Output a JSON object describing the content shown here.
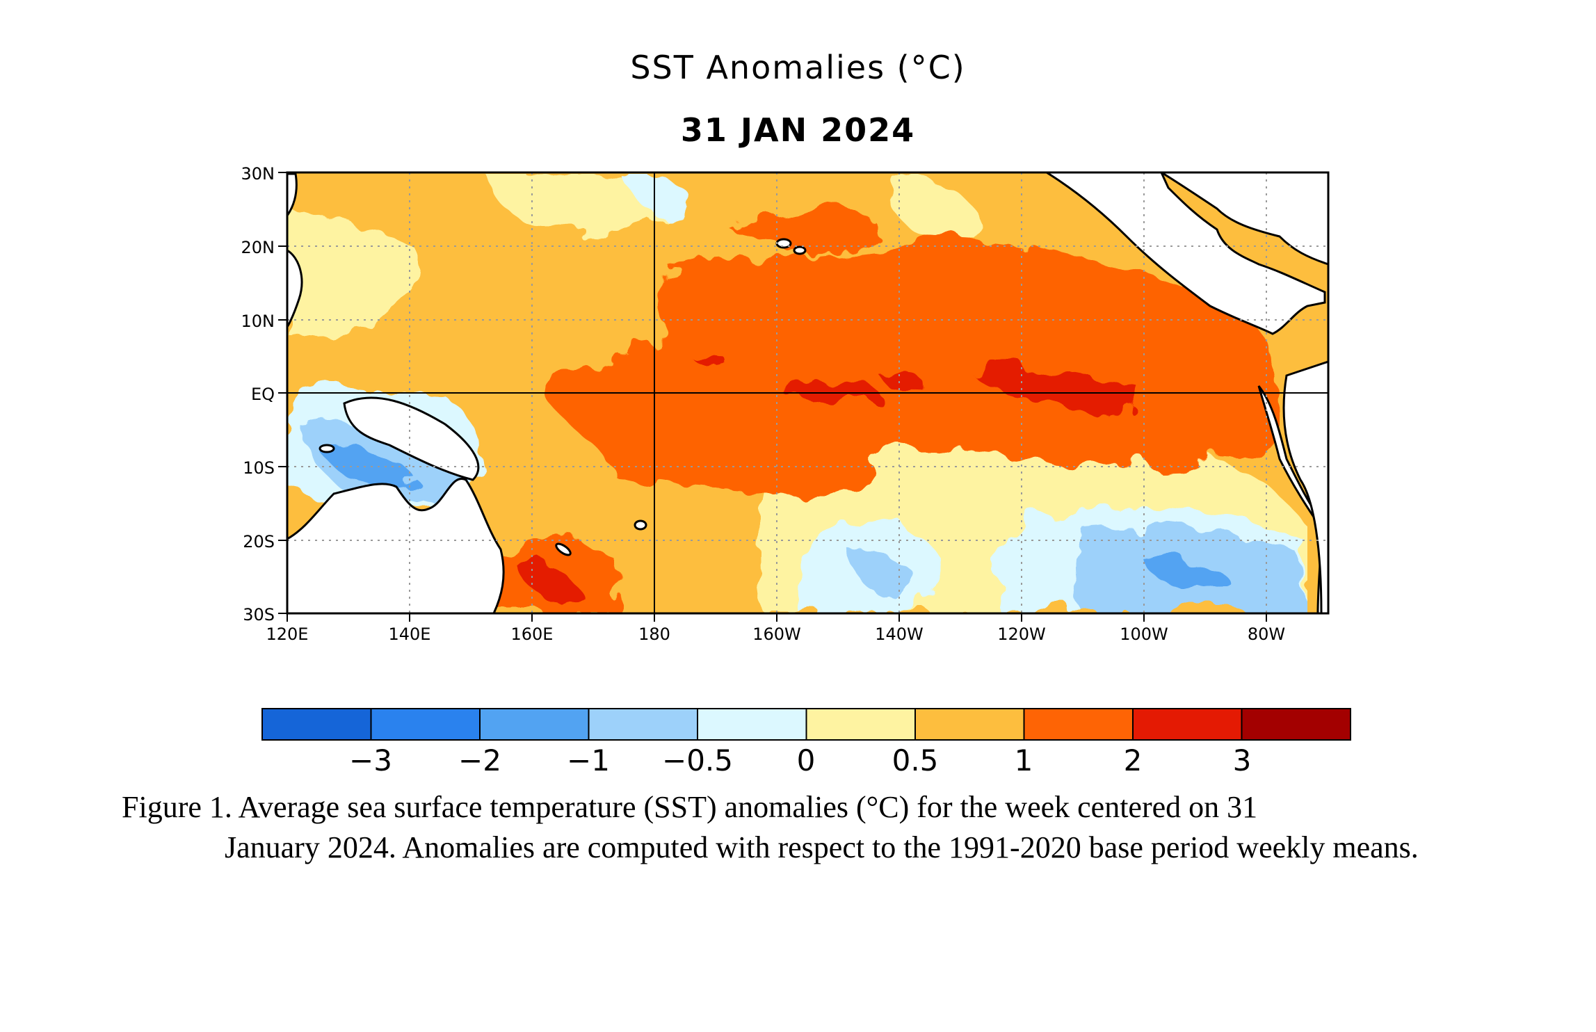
{
  "title": "SST Anomalies (°C)",
  "subtitle": "31 JAN 2024",
  "map": {
    "lat_labels": [
      "30N",
      "20N",
      "10N",
      "EQ",
      "10S",
      "20S",
      "30S"
    ],
    "lat_values": [
      30,
      20,
      10,
      0,
      -10,
      -20,
      -30
    ],
    "lon_labels": [
      "120E",
      "140E",
      "160E",
      "180",
      "160W",
      "140W",
      "120W",
      "100W",
      "80W"
    ],
    "lon_values": [
      120,
      140,
      160,
      180,
      200,
      220,
      240,
      260,
      280
    ],
    "lon_range": [
      120,
      290
    ],
    "lat_range": [
      -30,
      30
    ]
  },
  "colorbar": {
    "colors": [
      "#1565d8",
      "#2a82ee",
      "#52a3f2",
      "#9dd1fa",
      "#dcf8ff",
      "#fef3a1",
      "#fdbe3e",
      "#fe6405",
      "#e41a03",
      "#a30000"
    ],
    "labels": [
      "−3",
      "−2",
      "−1",
      "−0.5",
      "0",
      "0.5",
      "1",
      "2",
      "3"
    ]
  },
  "caption": {
    "line1": "Figure 1. Average sea surface temperature (SST) anomalies (°C) for the week centered on 31",
    "rest": "January 2024.  Anomalies are computed with respect to the 1991-2020 base period weekly means."
  }
}
